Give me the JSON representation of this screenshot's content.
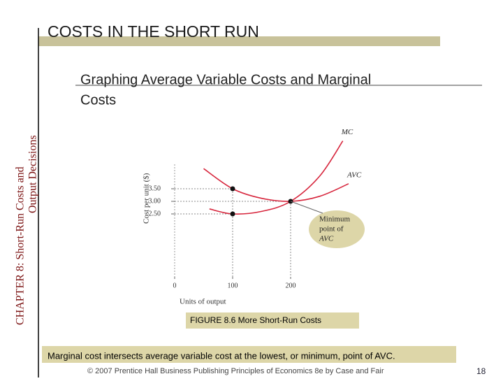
{
  "slide_title": "COSTS IN THE SHORT RUN",
  "side_title": [
    "CHAPTER 8:  Short-Run Costs and",
    "Output Decisions"
  ],
  "subtitle": [
    "Graphing Average Variable Costs and Marginal",
    "Costs"
  ],
  "chart_data": {
    "type": "line",
    "xlabel": "Units of output",
    "ylabel": "Cost per unit ($)",
    "xlim": [
      0,
      300
    ],
    "ylim": [
      0,
      6
    ],
    "xticks": [
      0,
      100,
      200
    ],
    "yticks": [
      {
        "value": 2.5,
        "label": "2.50"
      },
      {
        "value": 3,
        "label": "3.00"
      },
      {
        "value": 3.5,
        "label": "3.50"
      }
    ],
    "series": [
      {
        "name": "MC",
        "color": "#d7263d",
        "x": [
          60,
          100,
          150,
          200,
          250,
          290
        ],
        "values": [
          2.7,
          2.5,
          2.6,
          3.0,
          4.0,
          5.4
        ]
      },
      {
        "name": "AVC",
        "color": "#d7263d",
        "x": [
          50,
          100,
          150,
          200,
          250,
          300
        ],
        "values": [
          4.3,
          3.5,
          3.12,
          3.0,
          3.2,
          3.7
        ]
      }
    ],
    "points": {
      "x": [
        100,
        100,
        200
      ],
      "values": [
        3.5,
        2.5,
        3.0
      ]
    },
    "annotation": [
      "Minimum",
      "point of",
      "AVC"
    ],
    "caption": "FIGURE 8.6  More Short-Run Costs"
  },
  "summary": "Marginal cost intersects average variable cost at the lowest, or minimum, point of AVC.",
  "footer": "© 2007 Prentice Hall Business Publishing   Principles of Economics 8e by Case and Fair",
  "page_number": "18"
}
